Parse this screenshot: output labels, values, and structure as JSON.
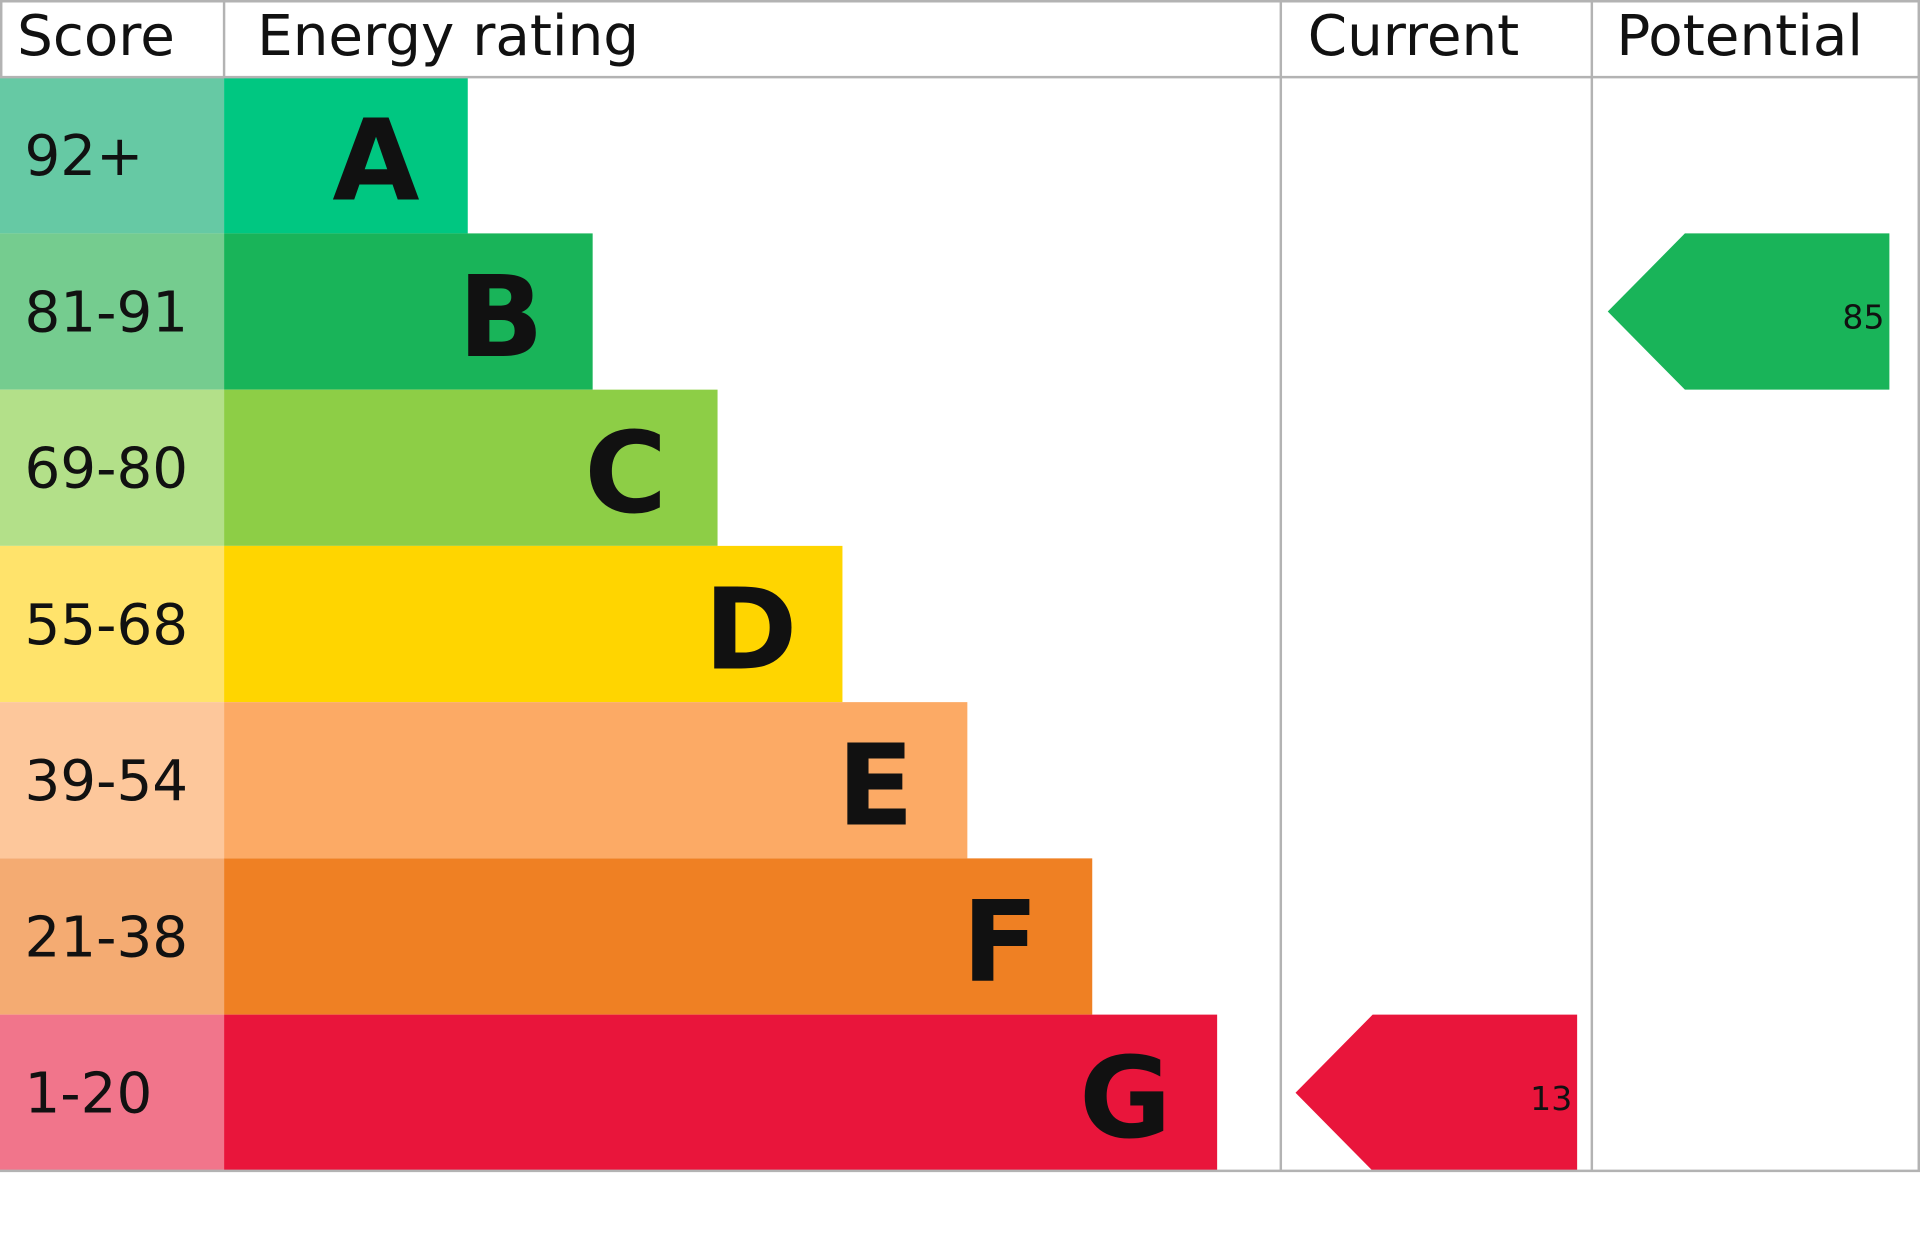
{
  "headers": {
    "score": "Score",
    "rating": "Energy rating",
    "current": "Current",
    "potential": "Potential"
  },
  "bands": [
    {
      "score": "92+",
      "letter": "A",
      "color": "#00c781",
      "score_color": "#66c9a4"
    },
    {
      "score": "81-91",
      "letter": "B",
      "color": "#19b459",
      "score_color": "#75cc8f"
    },
    {
      "score": "69-80",
      "letter": "C",
      "color": "#8dce46",
      "score_color": "#b3e089"
    },
    {
      "score": "55-68",
      "letter": "D",
      "color": "#ffd500",
      "score_color": "#ffe36b"
    },
    {
      "score": "39-54",
      "letter": "E",
      "color": "#fcaa65",
      "score_color": "#fdc79b"
    },
    {
      "score": "21-38",
      "letter": "F",
      "color": "#ef8023",
      "score_color": "#f4ab72"
    },
    {
      "score": "1-20",
      "letter": "G",
      "color": "#e9153b",
      "score_color": "#f1758b"
    }
  ],
  "current": 13,
  "potential": 85
}
